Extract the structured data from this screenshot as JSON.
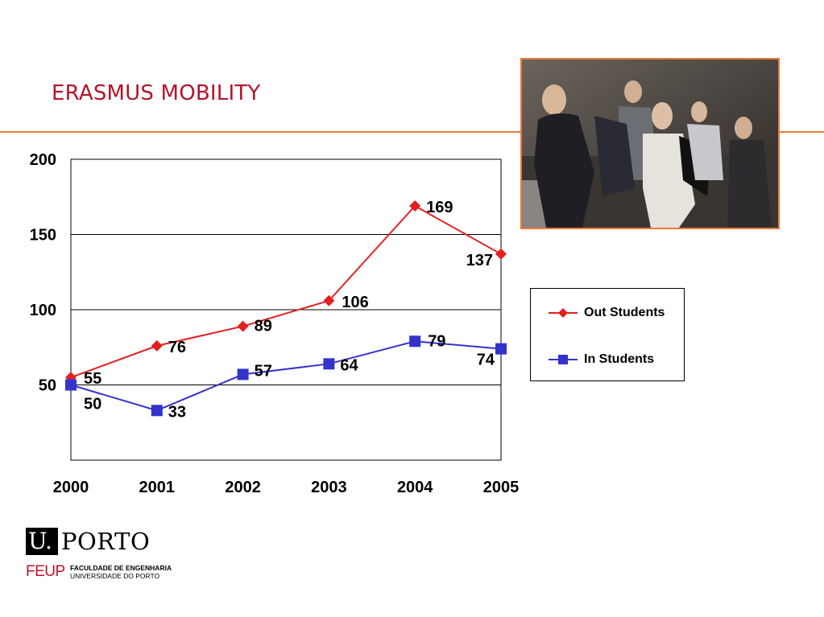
{
  "slide": {
    "title": "ERASMUS MOBILITY"
  },
  "logo": {
    "u": "U.",
    "porto": "PORTO",
    "feup": "FEUP",
    "faculty_line1": "FACULDADE DE ENGENHARIA",
    "faculty_line2": "UNIVERSIDADE DO PORTO"
  },
  "colors": {
    "accent_orange": "#e87a3c",
    "title_red": "#b5142b",
    "series_out": "#e31f1f",
    "series_in": "#3333cc"
  },
  "chart_data": {
    "type": "line",
    "title": "",
    "xlabel": "",
    "ylabel": "",
    "categories": [
      "2000",
      "2001",
      "2002",
      "2003",
      "2004",
      "2005"
    ],
    "ylim": [
      0,
      200
    ],
    "y_ticks": [
      "50",
      "100",
      "150",
      "200"
    ],
    "grid": true,
    "legend_position": "right",
    "series": [
      {
        "name": "Out Students",
        "values": [
          55,
          76,
          89,
          106,
          169,
          137
        ],
        "color": "#e31f1f",
        "marker": "diamond"
      },
      {
        "name": "In Students",
        "values": [
          50,
          33,
          57,
          64,
          79,
          74
        ],
        "color": "#3333cc",
        "marker": "square"
      }
    ]
  }
}
